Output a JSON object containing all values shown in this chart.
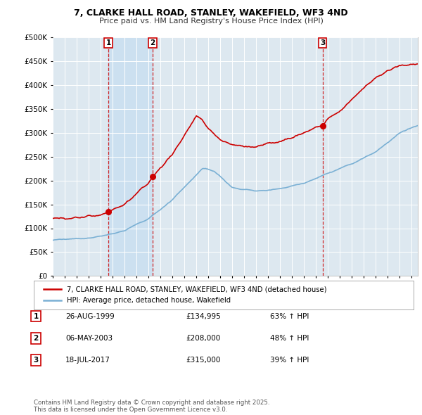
{
  "title": "7, CLARKE HALL ROAD, STANLEY, WAKEFIELD, WF3 4ND",
  "subtitle": "Price paid vs. HM Land Registry's House Price Index (HPI)",
  "legend_label_red": "7, CLARKE HALL ROAD, STANLEY, WAKEFIELD, WF3 4ND (detached house)",
  "legend_label_blue": "HPI: Average price, detached house, Wakefield",
  "footer": "Contains HM Land Registry data © Crown copyright and database right 2025.\nThis data is licensed under the Open Government Licence v3.0.",
  "sale_points": [
    {
      "num": 1,
      "date": "26-AUG-1999",
      "price": 134995,
      "pct": "63% ↑ HPI",
      "year": 1999.65
    },
    {
      "num": 2,
      "date": "06-MAY-2003",
      "price": 208000,
      "pct": "48% ↑ HPI",
      "year": 2003.35
    },
    {
      "num": 3,
      "date": "18-JUL-2017",
      "price": 315000,
      "pct": "39% ↑ HPI",
      "year": 2017.54
    }
  ],
  "shade_between": [
    1999.65,
    2003.35
  ],
  "shade_color": "#cce0f0",
  "background_color": "#dde8f0",
  "plot_bg": "#dde8f0",
  "red_color": "#cc0000",
  "blue_color": "#7ab0d4",
  "ylim": [
    0,
    500000
  ],
  "xlim_start": 1995.0,
  "xlim_end": 2025.5
}
